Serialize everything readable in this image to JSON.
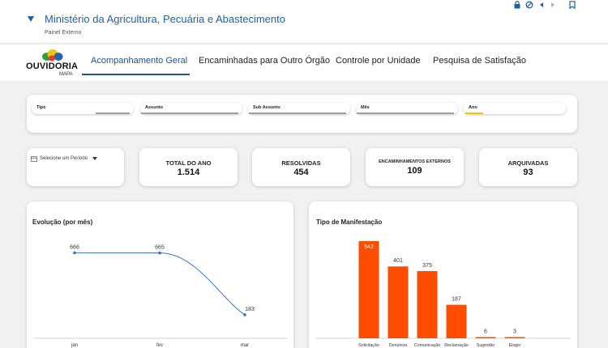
{
  "header": {
    "title": "Ministério da Agricultura, Pecuária e Abastecimento",
    "subtitle": "Painel Externo",
    "icons": [
      "lock-icon",
      "block-icon",
      "prev-icon",
      "next-icon",
      "bookmark-icon"
    ]
  },
  "nav": {
    "logo_text": "OUVIDORIA",
    "logo_sub": "MAPA",
    "tabs": [
      {
        "label": "Acompanhamento Geral",
        "active": true
      },
      {
        "label": "Encaminhadas para Outro Órgão",
        "active": false
      },
      {
        "label": "Controle por Unidade",
        "active": false
      },
      {
        "label": "Pesquisa de Satisfação",
        "active": false
      }
    ]
  },
  "filters": [
    {
      "label": "Tipo"
    },
    {
      "label": "Assunto"
    },
    {
      "label": "Sub Assunto"
    },
    {
      "label": "Mês"
    },
    {
      "label": "Ano"
    }
  ],
  "period_selector": {
    "label": "Selecione um Período"
  },
  "kpis": [
    {
      "title": "TOTAL DO ANO",
      "value": "1.514"
    },
    {
      "title": "RESOLVIDAS",
      "value": "454"
    },
    {
      "title": "ENCAMINHAMENTOS EXTERNOS",
      "value": "109"
    },
    {
      "title": "ARQUIVADAS",
      "value": "93"
    }
  ],
  "colors": {
    "line": "#3f6fc8",
    "bar": "#ff4d00",
    "accent": "#1f4f8f"
  },
  "chart_data": [
    {
      "type": "line",
      "title": "Evolução (por mês)",
      "categories": [
        "jan",
        "fev",
        "mar"
      ],
      "values": [
        666,
        665,
        183
      ],
      "data_labels": [
        "666",
        "665",
        "183"
      ]
    },
    {
      "type": "bar",
      "title": "Tipo de Manifestação",
      "categories": [
        "Solicitação",
        "Denúncia",
        "Comunicação",
        "Reclamação",
        "Sugestão",
        "Elogio"
      ],
      "values": [
        542,
        401,
        375,
        187,
        6,
        3
      ],
      "data_labels": [
        "542",
        "401",
        "375",
        "187",
        "6",
        "3"
      ]
    }
  ]
}
